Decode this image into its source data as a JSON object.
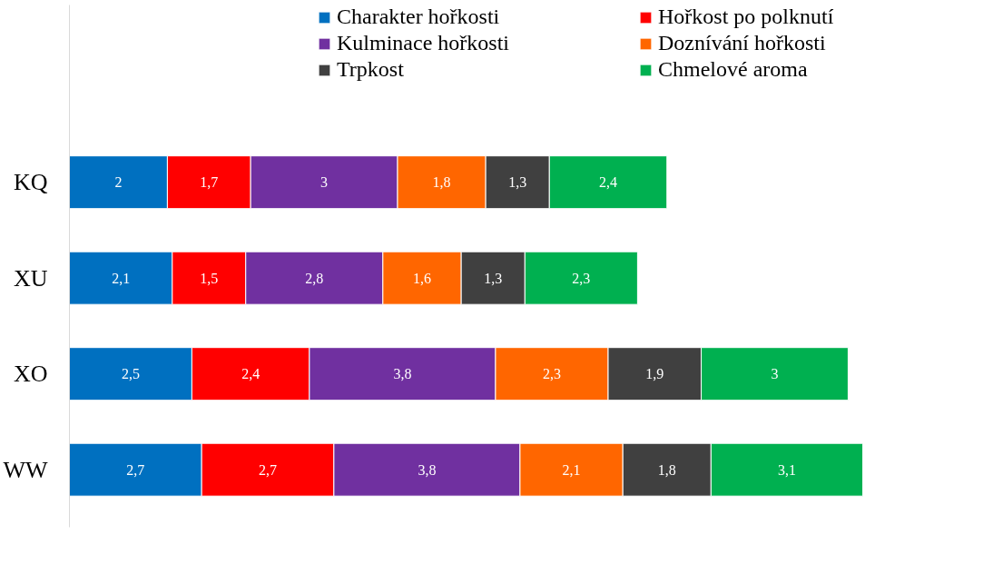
{
  "chart_data": {
    "type": "bar",
    "orientation": "horizontal",
    "stacked": true,
    "legend": "top",
    "grid": false,
    "tick_labels": "y",
    "categories": [
      "KQ",
      "XU",
      "XO",
      "WW"
    ],
    "series": [
      {
        "name": "Charakter hořkosti",
        "color": "#0070c0",
        "values": [
          2,
          2.1,
          2.5,
          2.7
        ],
        "value_labels": [
          "2",
          "2,1",
          "2,5",
          "2,7"
        ]
      },
      {
        "name": "Hořkost po polknutí",
        "color": "#ff0000",
        "values": [
          1.7,
          1.5,
          2.4,
          2.7
        ],
        "value_labels": [
          "1,7",
          "1,5",
          "2,4",
          "2,7"
        ]
      },
      {
        "name": "Kulminace hořkosti",
        "color": "#7030a0",
        "values": [
          3,
          2.8,
          3.8,
          3.8
        ],
        "value_labels": [
          "3",
          "2,8",
          "3,8",
          "3,8"
        ]
      },
      {
        "name": "Doznívání hořkosti",
        "color": "#ff6600",
        "values": [
          1.8,
          1.6,
          2.3,
          2.1
        ],
        "value_labels": [
          "1,8",
          "1,6",
          "2,3",
          "2,1"
        ]
      },
      {
        "name": "Trpkost",
        "color": "#404040",
        "values": [
          1.3,
          1.3,
          1.9,
          1.8
        ],
        "value_labels": [
          "1,3",
          "1,3",
          "1,9",
          "1,8"
        ]
      },
      {
        "name": "Chmelové aroma",
        "color": "#00b050",
        "values": [
          2.4,
          2.3,
          3,
          3.1
        ],
        "value_labels": [
          "2,4",
          "2,3",
          "3",
          "3,1"
        ]
      }
    ]
  }
}
